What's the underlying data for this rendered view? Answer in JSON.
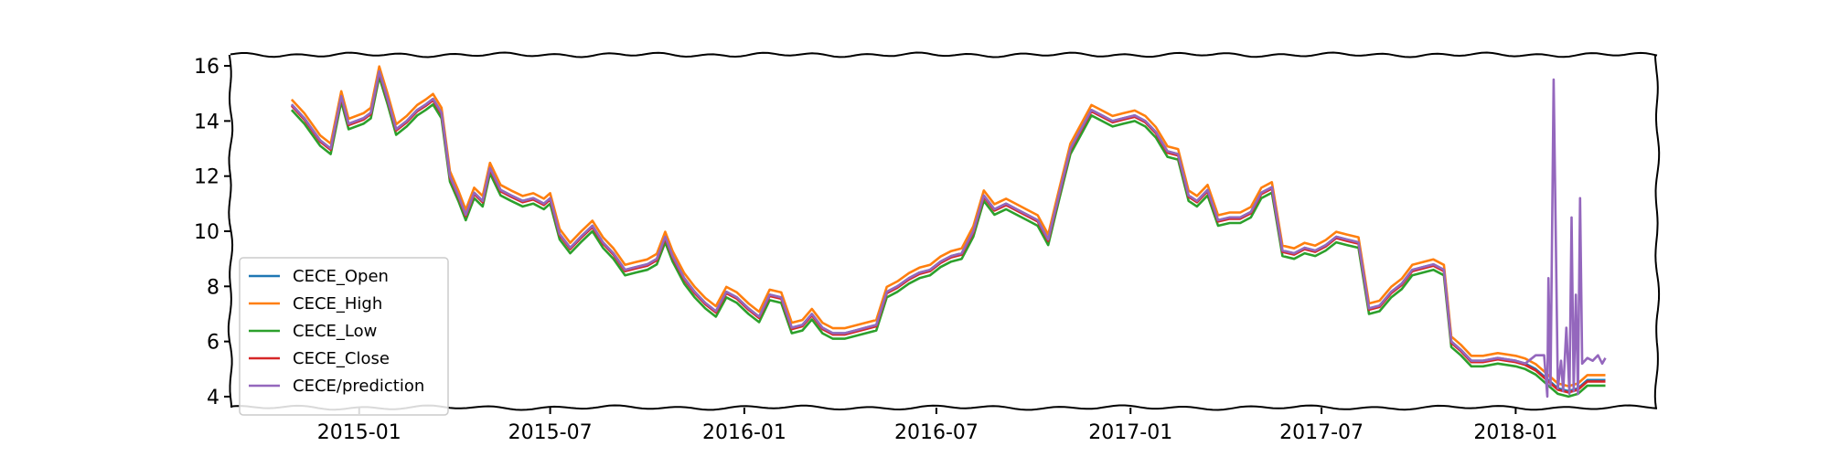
{
  "chart_data": {
    "type": "line",
    "title": "",
    "xlabel": "",
    "ylabel": "",
    "xlim": [
      "2014-09-01",
      "2018-05-15"
    ],
    "ylim": [
      3.6,
      16.4
    ],
    "yticks": [
      4,
      6,
      8,
      10,
      12,
      14,
      16
    ],
    "xticks": [
      "2015-01",
      "2015-07",
      "2016-01",
      "2016-07",
      "2017-01",
      "2017-07",
      "2018-01"
    ],
    "grid": false,
    "legend_position": "lower-left",
    "series": [
      {
        "name": "CECE_Open",
        "color": "#1f77b4",
        "offset": 0.0
      },
      {
        "name": "CECE_High",
        "color": "#ff7f0e",
        "offset": 0.18
      },
      {
        "name": "CECE_Low",
        "color": "#2ca02c",
        "offset": -0.2
      },
      {
        "name": "CECE_Close",
        "color": "#d62728",
        "offset": -0.05
      },
      {
        "name": "CECE/prediction",
        "color": "#9467bd",
        "offset": 0.0
      }
    ],
    "base_points": [
      [
        "2014-10-29",
        14.6
      ],
      [
        "2014-11-10",
        14.1
      ],
      [
        "2014-11-25",
        13.3
      ],
      [
        "2014-12-05",
        13.0
      ],
      [
        "2014-12-15",
        14.9
      ],
      [
        "2014-12-22",
        13.9
      ],
      [
        "2015-01-05",
        14.1
      ],
      [
        "2015-01-12",
        14.3
      ],
      [
        "2015-01-20",
        15.8
      ],
      [
        "2015-01-28",
        14.8
      ],
      [
        "2015-02-05",
        13.7
      ],
      [
        "2015-02-15",
        14.0
      ],
      [
        "2015-02-25",
        14.4
      ],
      [
        "2015-03-05",
        14.6
      ],
      [
        "2015-03-12",
        14.8
      ],
      [
        "2015-03-20",
        14.3
      ],
      [
        "2015-03-28",
        12.0
      ],
      [
        "2015-04-05",
        11.3
      ],
      [
        "2015-04-12",
        10.6
      ],
      [
        "2015-04-20",
        11.4
      ],
      [
        "2015-04-28",
        11.1
      ],
      [
        "2015-05-05",
        12.3
      ],
      [
        "2015-05-15",
        11.5
      ],
      [
        "2015-05-25",
        11.3
      ],
      [
        "2015-06-05",
        11.1
      ],
      [
        "2015-06-15",
        11.2
      ],
      [
        "2015-06-25",
        11.0
      ],
      [
        "2015-07-01",
        11.2
      ],
      [
        "2015-07-10",
        9.9
      ],
      [
        "2015-07-20",
        9.4
      ],
      [
        "2015-07-30",
        9.8
      ],
      [
        "2015-08-10",
        10.2
      ],
      [
        "2015-08-20",
        9.6
      ],
      [
        "2015-08-30",
        9.2
      ],
      [
        "2015-09-10",
        8.6
      ],
      [
        "2015-09-20",
        8.7
      ],
      [
        "2015-10-01",
        8.8
      ],
      [
        "2015-10-10",
        9.0
      ],
      [
        "2015-10-18",
        9.8
      ],
      [
        "2015-10-25",
        9.1
      ],
      [
        "2015-11-05",
        8.3
      ],
      [
        "2015-11-15",
        7.8
      ],
      [
        "2015-11-25",
        7.4
      ],
      [
        "2015-12-05",
        7.1
      ],
      [
        "2015-12-15",
        7.8
      ],
      [
        "2015-12-25",
        7.6
      ],
      [
        "2016-01-05",
        7.2
      ],
      [
        "2016-01-15",
        6.9
      ],
      [
        "2016-01-25",
        7.7
      ],
      [
        "2016-02-05",
        7.6
      ],
      [
        "2016-02-15",
        6.5
      ],
      [
        "2016-02-25",
        6.6
      ],
      [
        "2016-03-05",
        7.0
      ],
      [
        "2016-03-15",
        6.5
      ],
      [
        "2016-03-25",
        6.3
      ],
      [
        "2016-04-05",
        6.3
      ],
      [
        "2016-04-15",
        6.4
      ],
      [
        "2016-04-25",
        6.5
      ],
      [
        "2016-05-05",
        6.6
      ],
      [
        "2016-05-15",
        7.8
      ],
      [
        "2016-05-25",
        8.0
      ],
      [
        "2016-06-05",
        8.3
      ],
      [
        "2016-06-15",
        8.5
      ],
      [
        "2016-06-25",
        8.6
      ],
      [
        "2016-07-05",
        8.9
      ],
      [
        "2016-07-15",
        9.1
      ],
      [
        "2016-07-25",
        9.2
      ],
      [
        "2016-08-05",
        10.0
      ],
      [
        "2016-08-15",
        11.3
      ],
      [
        "2016-08-25",
        10.8
      ],
      [
        "2016-09-05",
        11.0
      ],
      [
        "2016-09-15",
        10.8
      ],
      [
        "2016-09-25",
        10.6
      ],
      [
        "2016-10-05",
        10.4
      ],
      [
        "2016-10-15",
        9.7
      ],
      [
        "2016-10-25",
        11.3
      ],
      [
        "2016-11-05",
        13.0
      ],
      [
        "2016-11-15",
        13.7
      ],
      [
        "2016-11-25",
        14.4
      ],
      [
        "2016-12-05",
        14.2
      ],
      [
        "2016-12-15",
        14.0
      ],
      [
        "2016-12-25",
        14.1
      ],
      [
        "2017-01-05",
        14.2
      ],
      [
        "2017-01-15",
        14.0
      ],
      [
        "2017-01-25",
        13.6
      ],
      [
        "2017-02-05",
        12.9
      ],
      [
        "2017-02-15",
        12.8
      ],
      [
        "2017-02-25",
        11.3
      ],
      [
        "2017-03-05",
        11.1
      ],
      [
        "2017-03-15",
        11.5
      ],
      [
        "2017-03-25",
        10.4
      ],
      [
        "2017-04-05",
        10.5
      ],
      [
        "2017-04-15",
        10.5
      ],
      [
        "2017-04-25",
        10.7
      ],
      [
        "2017-05-05",
        11.4
      ],
      [
        "2017-05-15",
        11.6
      ],
      [
        "2017-05-25",
        9.3
      ],
      [
        "2017-06-05",
        9.2
      ],
      [
        "2017-06-15",
        9.4
      ],
      [
        "2017-06-25",
        9.3
      ],
      [
        "2017-07-05",
        9.5
      ],
      [
        "2017-07-15",
        9.8
      ],
      [
        "2017-07-25",
        9.7
      ],
      [
        "2017-08-05",
        9.6
      ],
      [
        "2017-08-15",
        7.2
      ],
      [
        "2017-08-25",
        7.3
      ],
      [
        "2017-09-05",
        7.8
      ],
      [
        "2017-09-15",
        8.1
      ],
      [
        "2017-09-25",
        8.6
      ],
      [
        "2017-10-05",
        8.7
      ],
      [
        "2017-10-15",
        8.8
      ],
      [
        "2017-10-25",
        8.6
      ],
      [
        "2017-11-01",
        6.0
      ],
      [
        "2017-11-10",
        5.7
      ],
      [
        "2017-11-20",
        5.3
      ],
      [
        "2017-12-01",
        5.3
      ],
      [
        "2017-12-15",
        5.4
      ],
      [
        "2018-01-01",
        5.3
      ],
      [
        "2018-01-10",
        5.2
      ],
      [
        "2018-01-20",
        5.0
      ],
      [
        "2018-02-01",
        4.6
      ],
      [
        "2018-02-10",
        4.3
      ],
      [
        "2018-02-20",
        4.2
      ],
      [
        "2018-03-01",
        4.3
      ],
      [
        "2018-03-10",
        4.6
      ],
      [
        "2018-03-20",
        4.6
      ],
      [
        "2018-03-27",
        4.6
      ]
    ],
    "prediction_tail": [
      [
        "2018-01-20",
        5.5
      ],
      [
        "2018-01-28",
        5.5
      ],
      [
        "2018-01-31",
        4.0
      ],
      [
        "2018-02-01",
        8.3
      ],
      [
        "2018-02-03",
        4.4
      ],
      [
        "2018-02-06",
        15.5
      ],
      [
        "2018-02-10",
        4.3
      ],
      [
        "2018-02-13",
        5.3
      ],
      [
        "2018-02-15",
        4.2
      ],
      [
        "2018-02-18",
        6.5
      ],
      [
        "2018-02-21",
        4.1
      ],
      [
        "2018-02-23",
        10.5
      ],
      [
        "2018-02-25",
        4.2
      ],
      [
        "2018-02-27",
        7.7
      ],
      [
        "2018-03-01",
        4.1
      ],
      [
        "2018-03-03",
        11.2
      ],
      [
        "2018-03-05",
        5.2
      ],
      [
        "2018-03-10",
        5.4
      ],
      [
        "2018-03-15",
        5.3
      ],
      [
        "2018-03-20",
        5.5
      ],
      [
        "2018-03-24",
        5.2
      ],
      [
        "2018-03-27",
        5.4
      ]
    ]
  }
}
